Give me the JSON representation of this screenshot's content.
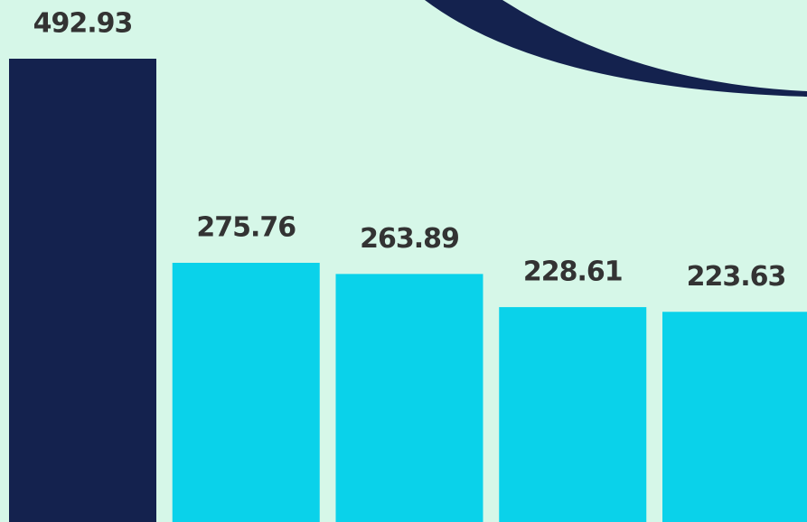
{
  "chart_data": {
    "type": "bar",
    "values": [
      492.93,
      275.76,
      263.89,
      228.61,
      223.63
    ],
    "colors": [
      "#14224e",
      "#0ad2ea",
      "#0ad2ea",
      "#0ad2ea",
      "#0ad2ea"
    ]
  }
}
